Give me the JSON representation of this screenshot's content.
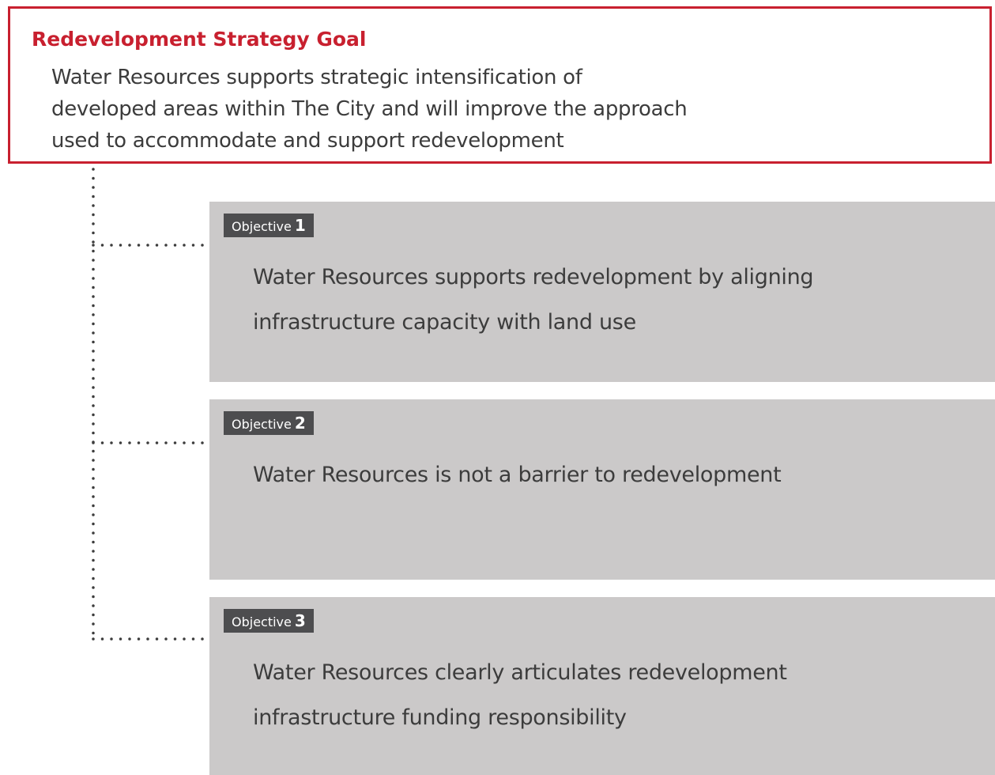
{
  "goal": {
    "title": "Redevelopment Strategy Goal",
    "text_lines": [
      "Water Resources supports strategic intensification of",
      "developed areas within The City and will improve the approach",
      "used to accommodate and support redevelopment"
    ]
  },
  "objectives": [
    {
      "label": "Objective",
      "number": "1",
      "text_lines": [
        "Water Resources supports redevelopment by aligning",
        "infrastructure capacity with land use"
      ]
    },
    {
      "label": "Objective",
      "number": "2",
      "text_lines": [
        "Water Resources is not a barrier to redevelopment"
      ]
    },
    {
      "label": "Objective",
      "number": "3",
      "text_lines": [
        "Water Resources clearly articulates redevelopment",
        "infrastructure funding responsibility"
      ]
    }
  ]
}
